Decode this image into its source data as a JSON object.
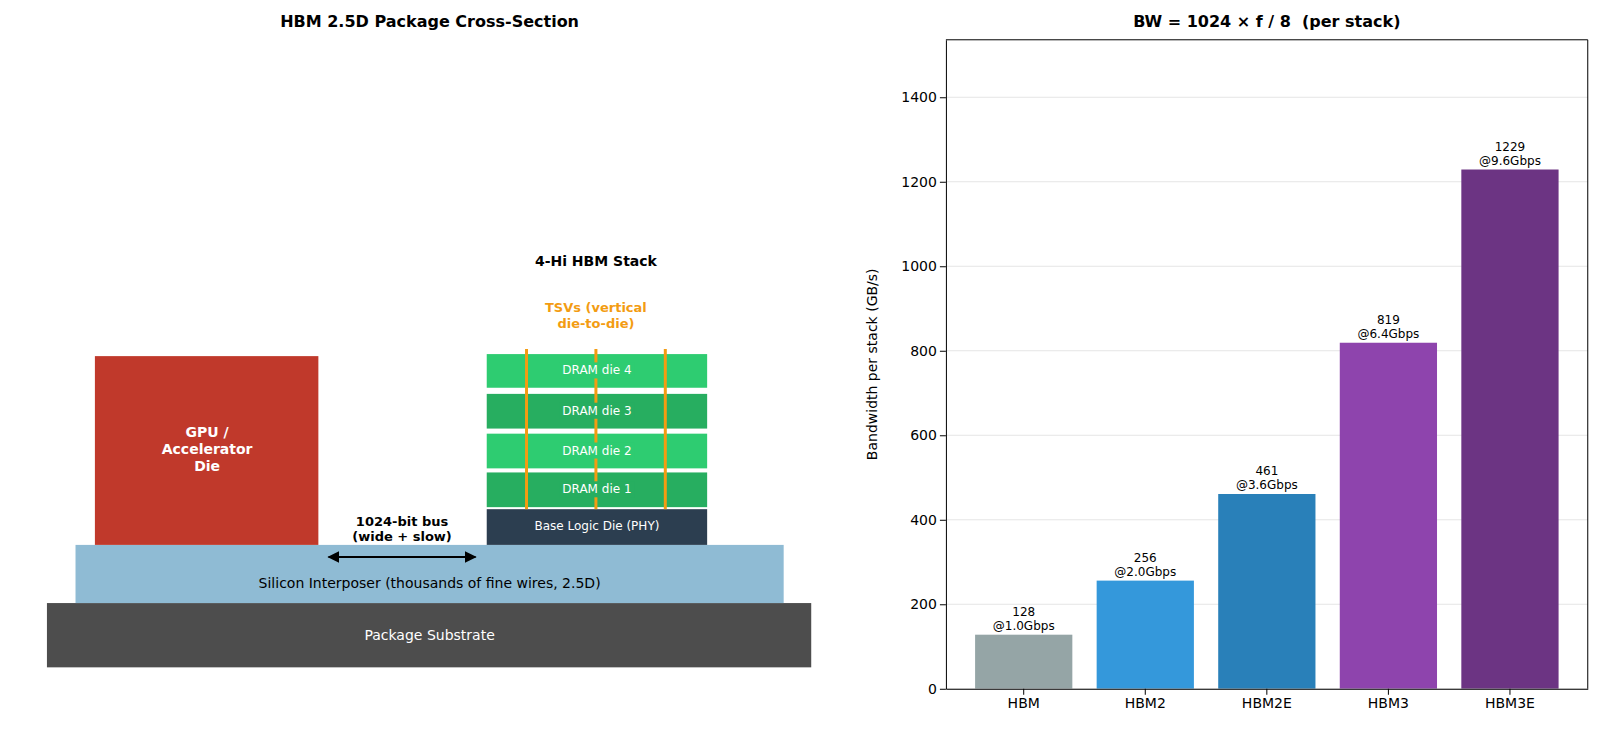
{
  "diagram": {
    "title": "HBM 2.5D Package Cross-Section",
    "stack_label": "4-Hi HBM Stack",
    "tsv_label": [
      "TSVs (vertical",
      "die-to-die)"
    ],
    "gpu_die": [
      "GPU /",
      "Accelerator",
      "Die"
    ],
    "dram_dies": [
      "DRAM die 1",
      "DRAM die 2",
      "DRAM die 3",
      "DRAM die 4"
    ],
    "base_die": "Base Logic Die (PHY)",
    "bus_label": [
      "1024-bit bus",
      "(wide + slow)"
    ],
    "interposer": "Silicon Interposer (thousands of fine wires, 2.5D)",
    "substrate": "Package Substrate"
  },
  "chart_data": {
    "type": "bar",
    "title": "BW = 1024 × f / 8  (per stack)",
    "y_label": "Bandwidth per stack (GB/s)",
    "categories": [
      "HBM",
      "HBM2",
      "HBM2E",
      "HBM3",
      "HBM3E"
    ],
    "values": [
      128,
      256,
      461,
      819,
      1229
    ],
    "value_labels": [
      [
        "128",
        "@1.0Gbps"
      ],
      [
        "256",
        "@2.0Gbps"
      ],
      [
        "461",
        "@3.6Gbps"
      ],
      [
        "819",
        "@6.4Gbps"
      ],
      [
        "1229",
        "@9.6Gbps"
      ]
    ],
    "data_labels": true,
    "colors": [
      "#95a5a6",
      "#3498db",
      "#2980b9",
      "#8e44ad",
      "#6c3483"
    ],
    "ylim": [
      0,
      1536
    ],
    "yticks": [
      0,
      200,
      400,
      600,
      800,
      1000,
      1200,
      1400
    ],
    "grid": true
  }
}
